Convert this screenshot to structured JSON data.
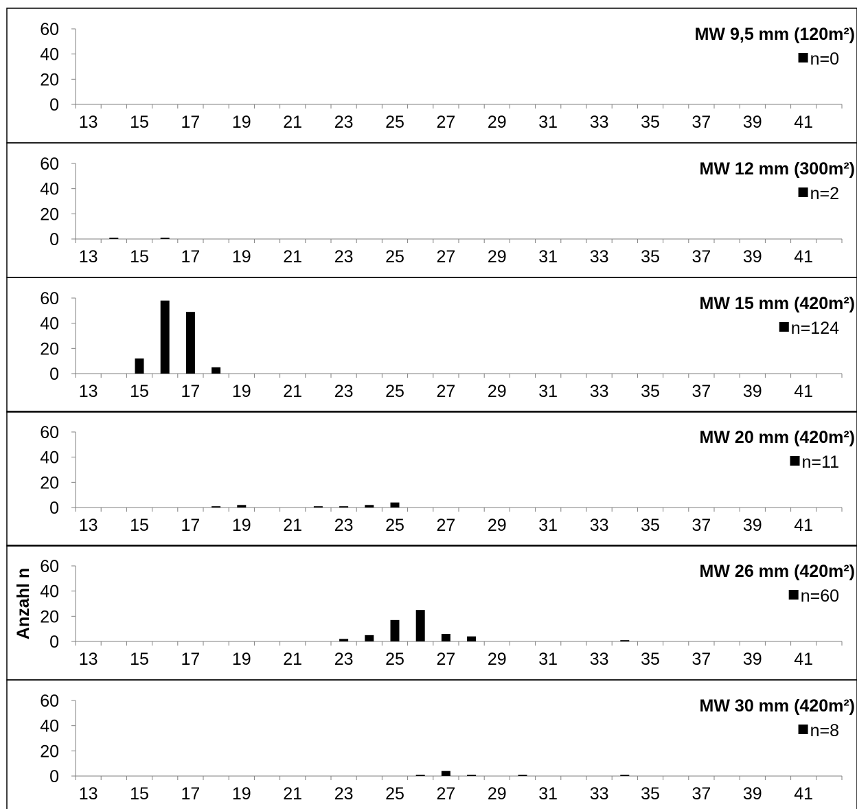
{
  "chart_data": [
    {
      "type": "bar",
      "title": "MW 9,5 mm (120m²)",
      "legend": "n=0",
      "ylabel": "",
      "ylim": [
        0,
        60
      ],
      "yticks": [
        "0",
        "20",
        "40",
        "60"
      ],
      "xticks": [
        "13",
        "15",
        "17",
        "19",
        "21",
        "23",
        "25",
        "27",
        "29",
        "31",
        "33",
        "35",
        "37",
        "39",
        "41"
      ],
      "x": [
        13,
        14,
        15,
        16,
        17,
        18,
        19,
        20,
        21,
        22,
        23,
        24,
        25,
        26,
        27,
        28,
        29,
        30,
        31,
        32,
        33,
        34,
        35,
        36,
        37,
        38,
        39,
        40,
        41,
        42
      ],
      "values": [
        0,
        0,
        0,
        0,
        0,
        0,
        0,
        0,
        0,
        0,
        0,
        0,
        0,
        0,
        0,
        0,
        0,
        0,
        0,
        0,
        0,
        0,
        0,
        0,
        0,
        0,
        0,
        0,
        0,
        0
      ]
    },
    {
      "type": "bar",
      "title": "MW 12 mm (300m²)",
      "legend": "n=2",
      "ylabel": "",
      "ylim": [
        0,
        60
      ],
      "yticks": [
        "0",
        "20",
        "40",
        "60"
      ],
      "xticks": [
        "13",
        "15",
        "17",
        "19",
        "21",
        "23",
        "25",
        "27",
        "29",
        "31",
        "33",
        "35",
        "37",
        "39",
        "41"
      ],
      "x": [
        13,
        14,
        15,
        16,
        17,
        18,
        19,
        20,
        21,
        22,
        23,
        24,
        25,
        26,
        27,
        28,
        29,
        30,
        31,
        32,
        33,
        34,
        35,
        36,
        37,
        38,
        39,
        40,
        41,
        42
      ],
      "values": [
        0,
        1,
        0,
        1,
        0,
        0,
        0,
        0,
        0,
        0,
        0,
        0,
        0,
        0,
        0,
        0,
        0,
        0,
        0,
        0,
        0,
        0,
        0,
        0,
        0,
        0,
        0,
        0,
        0,
        0
      ]
    },
    {
      "type": "bar",
      "title": "MW 15 mm (420m²)",
      "legend": "n=124",
      "ylabel": "",
      "ylim": [
        0,
        60
      ],
      "yticks": [
        "0",
        "20",
        "40",
        "60"
      ],
      "xticks": [
        "13",
        "15",
        "17",
        "19",
        "21",
        "23",
        "25",
        "27",
        "29",
        "31",
        "33",
        "35",
        "37",
        "39",
        "41"
      ],
      "x": [
        13,
        14,
        15,
        16,
        17,
        18,
        19,
        20,
        21,
        22,
        23,
        24,
        25,
        26,
        27,
        28,
        29,
        30,
        31,
        32,
        33,
        34,
        35,
        36,
        37,
        38,
        39,
        40,
        41,
        42
      ],
      "values": [
        0,
        0,
        12,
        58,
        49,
        5,
        0,
        0,
        0,
        0,
        0,
        0,
        0,
        0,
        0,
        0,
        0,
        0,
        0,
        0,
        0,
        0,
        0,
        0,
        0,
        0,
        0,
        0,
        0,
        0
      ]
    },
    {
      "type": "bar",
      "title": "MW 20 mm (420m²)",
      "legend": "n=11",
      "ylabel": "",
      "ylim": [
        0,
        60
      ],
      "yticks": [
        "0",
        "20",
        "40",
        "60"
      ],
      "xticks": [
        "13",
        "15",
        "17",
        "19",
        "21",
        "23",
        "25",
        "27",
        "29",
        "31",
        "33",
        "35",
        "37",
        "39",
        "41"
      ],
      "x": [
        13,
        14,
        15,
        16,
        17,
        18,
        19,
        20,
        21,
        22,
        23,
        24,
        25,
        26,
        27,
        28,
        29,
        30,
        31,
        32,
        33,
        34,
        35,
        36,
        37,
        38,
        39,
        40,
        41,
        42
      ],
      "values": [
        0,
        0,
        0,
        0,
        0,
        1,
        2,
        0,
        0,
        1,
        1,
        2,
        4,
        0,
        0,
        0,
        0,
        0,
        0,
        0,
        0,
        0,
        0,
        0,
        0,
        0,
        0,
        0,
        0,
        0
      ]
    },
    {
      "type": "bar",
      "title": "MW 26 mm (420m²)",
      "legend": "n=60",
      "ylabel": "Anzahl n",
      "ylim": [
        0,
        60
      ],
      "yticks": [
        "0",
        "20",
        "40",
        "60"
      ],
      "xticks": [
        "13",
        "15",
        "17",
        "19",
        "21",
        "23",
        "25",
        "27",
        "29",
        "31",
        "33",
        "35",
        "37",
        "39",
        "41"
      ],
      "x": [
        13,
        14,
        15,
        16,
        17,
        18,
        19,
        20,
        21,
        22,
        23,
        24,
        25,
        26,
        27,
        28,
        29,
        30,
        31,
        32,
        33,
        34,
        35,
        36,
        37,
        38,
        39,
        40,
        41,
        42
      ],
      "values": [
        0,
        0,
        0,
        0,
        0,
        0,
        0,
        0,
        0,
        0,
        2,
        5,
        17,
        25,
        6,
        4,
        0,
        0,
        0,
        0,
        0,
        1,
        0,
        0,
        0,
        0,
        0,
        0,
        0,
        0
      ]
    },
    {
      "type": "bar",
      "title": "MW 30 mm (420m²)",
      "legend": "n=8",
      "ylabel": "",
      "ylim": [
        0,
        60
      ],
      "yticks": [
        "0",
        "20",
        "40",
        "60"
      ],
      "xticks": [
        "13",
        "15",
        "17",
        "19",
        "21",
        "23",
        "25",
        "27",
        "29",
        "31",
        "33",
        "35",
        "37",
        "39",
        "41"
      ],
      "x": [
        13,
        14,
        15,
        16,
        17,
        18,
        19,
        20,
        21,
        22,
        23,
        24,
        25,
        26,
        27,
        28,
        29,
        30,
        31,
        32,
        33,
        34,
        35,
        36,
        37,
        38,
        39,
        40,
        41,
        42
      ],
      "values": [
        0,
        0,
        0,
        0,
        0,
        0,
        0,
        0,
        0,
        0,
        0,
        0,
        0,
        1,
        4,
        1,
        0,
        1,
        0,
        0,
        0,
        1,
        0,
        0,
        0,
        0,
        0,
        0,
        0,
        0
      ]
    }
  ],
  "colors": {
    "bar": "#000000",
    "axis": "#7f7f7f",
    "frame": "#000000",
    "background": "#ffffff"
  }
}
